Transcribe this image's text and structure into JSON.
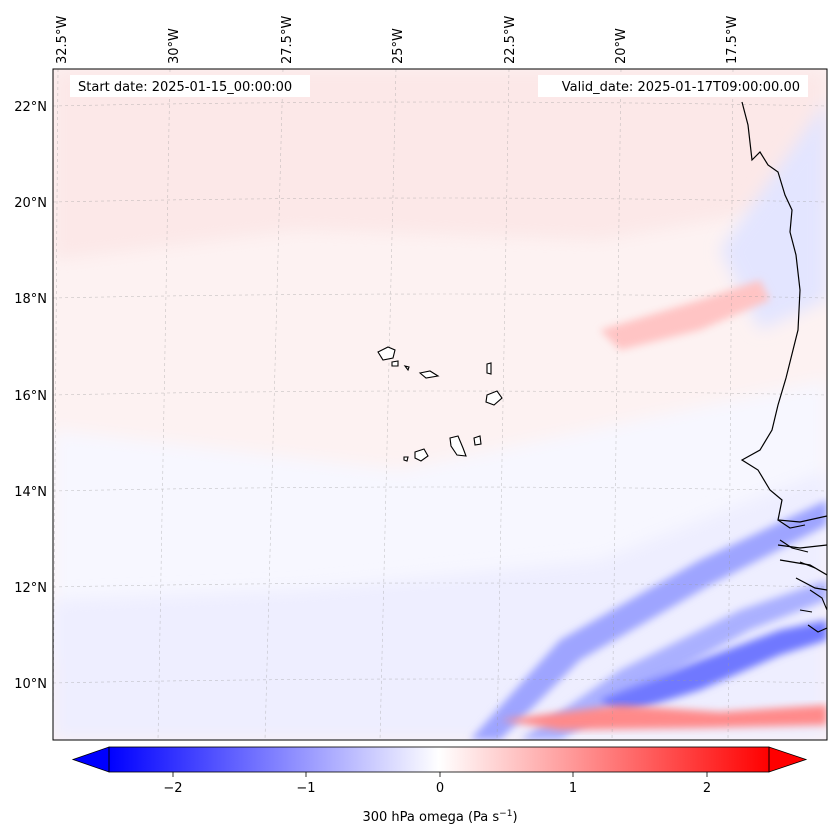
{
  "map": {
    "start_date": "Start date: 2025-01-15_00:00:00",
    "valid_date": "Valid_date: 2025-01-17T09:00:00.00",
    "lon_labels": [
      "32.5°W",
      "30°W",
      "27.5°W",
      "25°W",
      "22.5°W",
      "20°W",
      "17.5°W"
    ],
    "lat_labels": [
      "22°N",
      "20°N",
      "18°N",
      "16°N",
      "14°N",
      "12°N",
      "10°N"
    ]
  },
  "colorbar": {
    "ticks": [
      "−2",
      "−1",
      "0",
      "1",
      "2"
    ],
    "label_main": "300 hPa omega (Pa s",
    "label_sup": "−1",
    "label_end": ")"
  },
  "colors": {
    "negative": "#0000ff",
    "neutral": "#ffffff",
    "positive": "#ff0000",
    "coast": "#000000"
  }
}
